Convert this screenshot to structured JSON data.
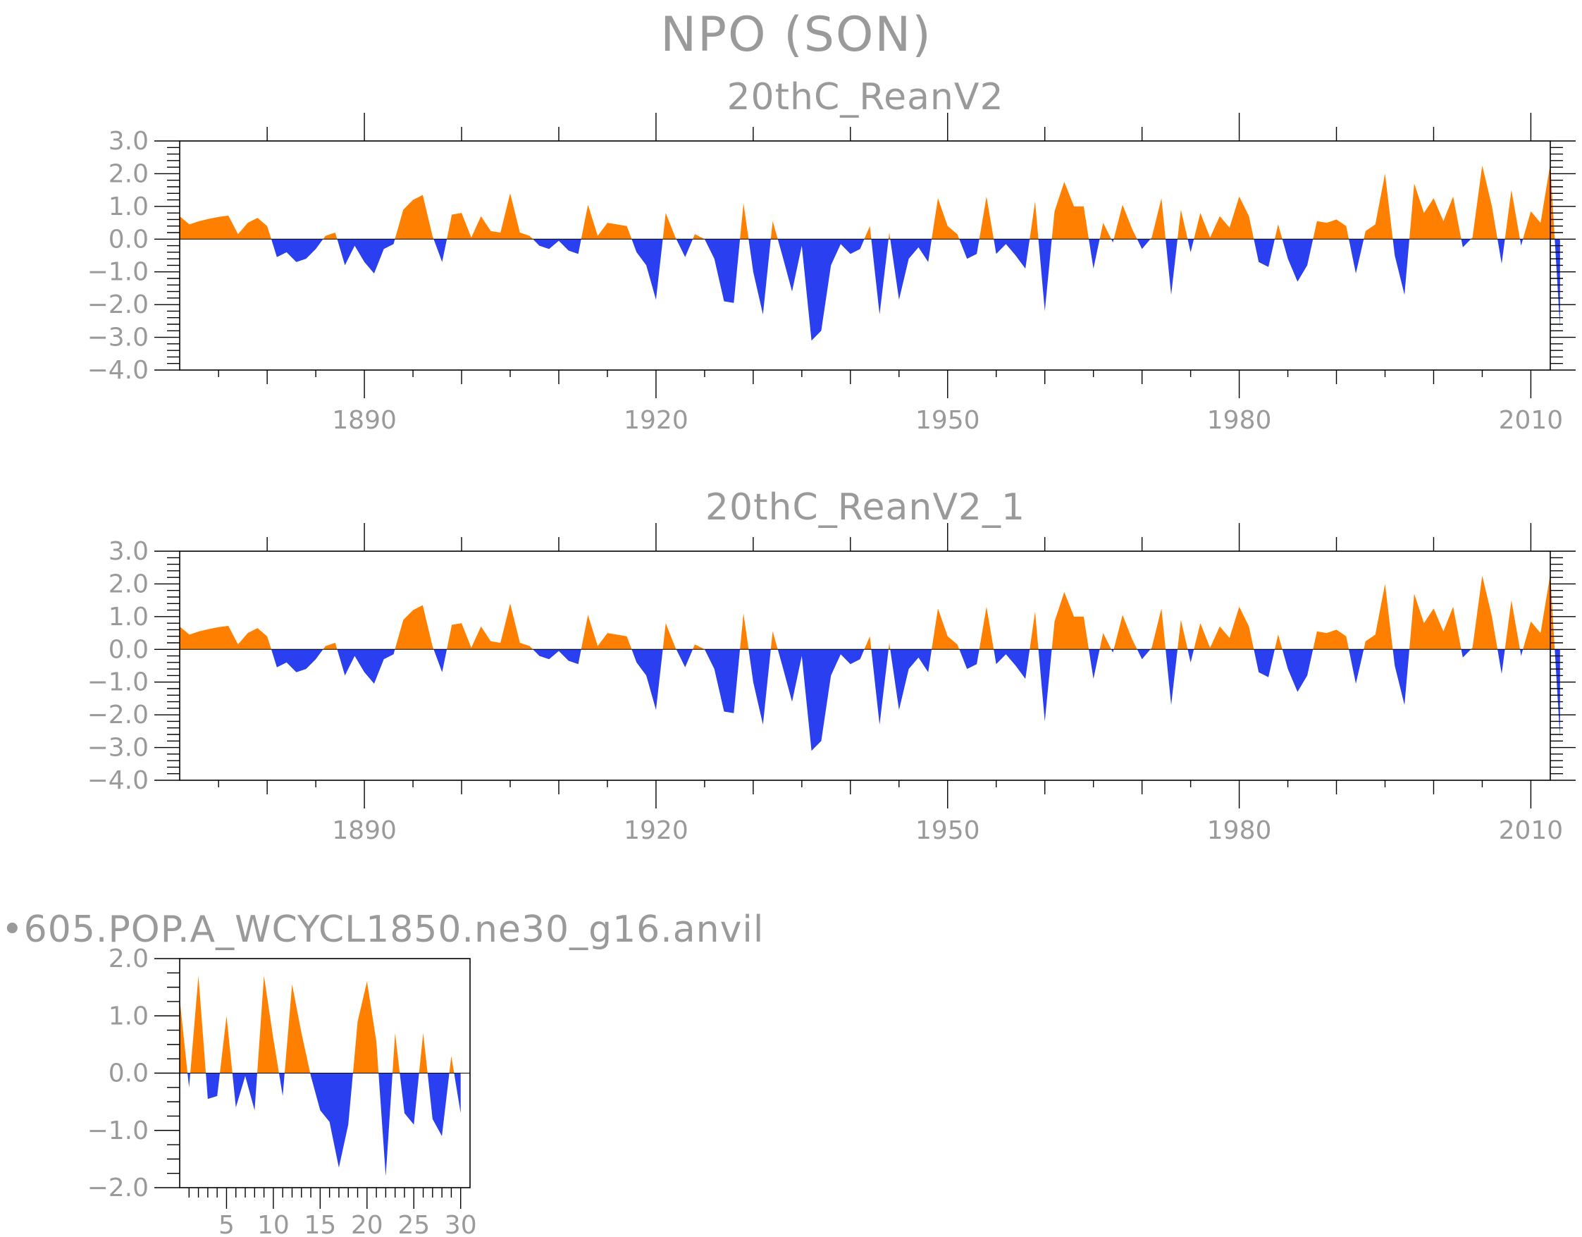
{
  "figure": {
    "title": "NPO (SON)",
    "colors": {
      "positive": "#ff8000",
      "negative": "#2a3ff0",
      "frame": "#000000",
      "text": "#9a9a9a"
    }
  },
  "chart_data": [
    {
      "type": "area",
      "title": "20thC_ReanV2",
      "xlabel": "",
      "ylabel": "",
      "xlim": [
        1871,
        2012
      ],
      "ylim": [
        -4.0,
        3.0
      ],
      "x_ticks": [
        1890,
        1920,
        1950,
        1980,
        2010
      ],
      "x_tick_labels": [
        "1890",
        "1920",
        "1950",
        "1980",
        "2010"
      ],
      "y_ticks": [
        3.0,
        2.0,
        1.0,
        0.0,
        -1.0,
        -2.0,
        -3.0,
        -4.0
      ],
      "y_tick_labels": [
        "3.0",
        "2.0",
        "1.0",
        "0.0",
        "−1.0",
        "−2.0",
        "−3.0",
        "−4.0"
      ],
      "x_start": 1871,
      "x_step": 1,
      "values": [
        0.7,
        0.45,
        0.55,
        0.62,
        0.68,
        0.72,
        0.15,
        0.5,
        0.65,
        0.4,
        -0.55,
        -0.4,
        -0.7,
        -0.6,
        -0.3,
        0.1,
        0.2,
        -0.8,
        -0.2,
        -0.7,
        -1.05,
        -0.3,
        -0.15,
        0.9,
        1.2,
        1.35,
        0.1,
        -0.7,
        0.75,
        0.8,
        0.05,
        0.7,
        0.25,
        0.2,
        1.4,
        0.2,
        0.1,
        -0.2,
        -0.3,
        -0.05,
        -0.35,
        -0.45,
        1.05,
        0.1,
        0.5,
        0.45,
        0.4,
        -0.4,
        -0.8,
        -1.85,
        0.8,
        0.05,
        -0.55,
        0.15,
        0.0,
        -0.6,
        -1.9,
        -1.95,
        1.1,
        -1.0,
        -2.3,
        0.55,
        -0.5,
        -1.6,
        -0.2,
        -3.1,
        -2.8,
        -0.8,
        -0.15,
        -0.45,
        -0.3,
        0.4,
        -2.3,
        0.2,
        -1.85,
        -0.6,
        -0.25,
        -0.7,
        1.25,
        0.4,
        0.15,
        -0.6,
        -0.45,
        1.3,
        -0.45,
        -0.15,
        -0.5,
        -0.9,
        1.15,
        -2.2,
        0.85,
        1.75,
        1.0,
        1.0,
        -0.9,
        0.5,
        -0.1,
        1.05,
        0.3,
        -0.3,
        0.05,
        1.25,
        -1.7,
        0.9,
        -0.4,
        0.8,
        0.05,
        0.7,
        0.35,
        1.3,
        0.7,
        -0.7,
        -0.85,
        0.45,
        -0.6,
        -1.3,
        -0.8,
        0.55,
        0.5,
        0.6,
        0.4,
        -1.05,
        0.25,
        0.45,
        2.0,
        -0.5,
        -1.7,
        1.7,
        0.8,
        1.25,
        0.55,
        1.3,
        -0.25,
        0.05,
        2.25,
        1.0,
        -0.75,
        1.5,
        -0.2,
        0.85,
        0.5,
        2.3,
        -2.7
      ]
    },
    {
      "type": "area",
      "title": "20thC_ReanV2_1",
      "xlabel": "",
      "ylabel": "",
      "xlim": [
        1871,
        2012
      ],
      "ylim": [
        -4.0,
        3.0
      ],
      "x_ticks": [
        1890,
        1920,
        1950,
        1980,
        2010
      ],
      "x_tick_labels": [
        "1890",
        "1920",
        "1950",
        "1980",
        "2010"
      ],
      "y_ticks": [
        3.0,
        2.0,
        1.0,
        0.0,
        -1.0,
        -2.0,
        -3.0,
        -4.0
      ],
      "y_tick_labels": [
        "3.0",
        "2.0",
        "1.0",
        "0.0",
        "−1.0",
        "−2.0",
        "−3.0",
        "−4.0"
      ],
      "x_start": 1871,
      "x_step": 1,
      "values": [
        0.7,
        0.45,
        0.55,
        0.62,
        0.68,
        0.72,
        0.15,
        0.5,
        0.65,
        0.4,
        -0.55,
        -0.4,
        -0.7,
        -0.6,
        -0.3,
        0.1,
        0.2,
        -0.8,
        -0.2,
        -0.7,
        -1.05,
        -0.3,
        -0.15,
        0.9,
        1.2,
        1.35,
        0.1,
        -0.7,
        0.75,
        0.8,
        0.05,
        0.7,
        0.25,
        0.2,
        1.4,
        0.2,
        0.1,
        -0.2,
        -0.3,
        -0.05,
        -0.35,
        -0.45,
        1.05,
        0.1,
        0.5,
        0.45,
        0.4,
        -0.4,
        -0.8,
        -1.85,
        0.8,
        0.05,
        -0.55,
        0.15,
        0.0,
        -0.6,
        -1.9,
        -1.95,
        1.1,
        -1.0,
        -2.3,
        0.55,
        -0.5,
        -1.6,
        -0.2,
        -3.1,
        -2.8,
        -0.8,
        -0.15,
        -0.45,
        -0.3,
        0.4,
        -2.3,
        0.2,
        -1.85,
        -0.6,
        -0.25,
        -0.7,
        1.25,
        0.4,
        0.15,
        -0.6,
        -0.45,
        1.3,
        -0.45,
        -0.15,
        -0.5,
        -0.9,
        1.15,
        -2.2,
        0.85,
        1.75,
        1.0,
        1.0,
        -0.9,
        0.5,
        -0.1,
        1.05,
        0.3,
        -0.3,
        0.05,
        1.25,
        -1.7,
        0.9,
        -0.4,
        0.8,
        0.05,
        0.7,
        0.35,
        1.3,
        0.7,
        -0.7,
        -0.85,
        0.45,
        -0.6,
        -1.3,
        -0.8,
        0.55,
        0.5,
        0.6,
        0.4,
        -1.05,
        0.25,
        0.45,
        2.0,
        -0.5,
        -1.7,
        1.7,
        0.8,
        1.25,
        0.55,
        1.3,
        -0.25,
        0.05,
        2.25,
        1.0,
        -0.75,
        1.5,
        -0.2,
        0.85,
        0.5,
        2.3,
        -2.7
      ]
    },
    {
      "type": "area",
      "title": "•605.POP.A_WCYCL1850.ne30_g16.anvil",
      "xlabel": "",
      "ylabel": "",
      "xlim": [
        0,
        31
      ],
      "ylim": [
        -2.0,
        2.0
      ],
      "x_ticks": [
        5,
        10,
        15,
        20,
        25,
        30
      ],
      "x_tick_labels": [
        "5",
        "10",
        "15",
        "20",
        "25",
        "30"
      ],
      "y_ticks": [
        2.0,
        1.0,
        0.0,
        -1.0,
        -2.0
      ],
      "y_tick_labels": [
        "2.0",
        "1.0",
        "0.0",
        "−1.0",
        "−2.0"
      ],
      "x_start": 0,
      "x_step": 1,
      "values": [
        1.3,
        -0.25,
        1.7,
        -0.45,
        -0.4,
        1.0,
        -0.6,
        -0.05,
        -0.65,
        1.7,
        0.6,
        -0.4,
        1.55,
        0.7,
        -0.05,
        -0.65,
        -0.85,
        -1.65,
        -0.9,
        0.9,
        1.6,
        0.55,
        -1.8,
        0.7,
        -0.7,
        -0.9,
        0.7,
        -0.8,
        -1.1,
        0.3,
        -0.7
      ]
    }
  ]
}
